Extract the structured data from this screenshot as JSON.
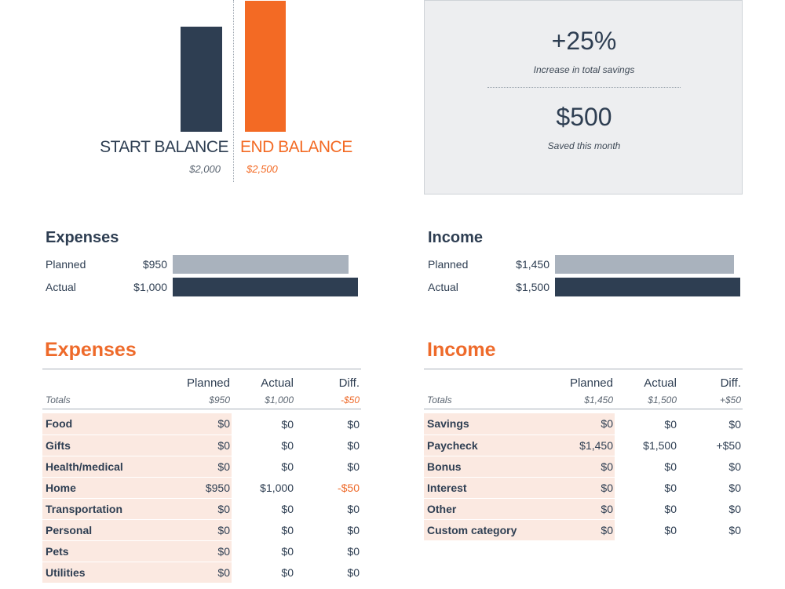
{
  "colors": {
    "navy": "#2e3e52",
    "orange": "#f36a24",
    "grey_bar": "#a9b2bd",
    "panel_bg": "#edeef0",
    "row_shade": "#fbe9e1"
  },
  "balance": {
    "start_label": "START BALANCE",
    "start_amount": "$2,000",
    "end_label": "END BALANCE",
    "end_amount": "$2,500"
  },
  "savings": {
    "increase_value": "+25%",
    "increase_caption": "Increase in total savings",
    "saved_value": "$500",
    "saved_caption": "Saved this month"
  },
  "expenses_summary": {
    "title": "Expenses",
    "planned_label": "Planned",
    "planned_amount": "$950",
    "planned_value": 950,
    "actual_label": "Actual",
    "actual_amount": "$1,000",
    "actual_value": 1000
  },
  "income_summary": {
    "title": "Income",
    "planned_label": "Planned",
    "planned_amount": "$1,450",
    "planned_value": 1450,
    "actual_label": "Actual",
    "actual_amount": "$1,500",
    "actual_value": 1500
  },
  "expenses_table": {
    "title": "Expenses",
    "headers": {
      "planned": "Planned",
      "actual": "Actual",
      "diff": "Diff."
    },
    "totals": {
      "label": "Totals",
      "planned": "$950",
      "actual": "$1,000",
      "diff": "-$50"
    },
    "rows": [
      {
        "category": "Food",
        "planned": "$0",
        "actual": "$0",
        "diff": "$0"
      },
      {
        "category": "Gifts",
        "planned": "$0",
        "actual": "$0",
        "diff": "$0"
      },
      {
        "category": "Health/medical",
        "planned": "$0",
        "actual": "$0",
        "diff": "$0"
      },
      {
        "category": "Home",
        "planned": "$950",
        "actual": "$1,000",
        "diff": "-$50"
      },
      {
        "category": "Transportation",
        "planned": "$0",
        "actual": "$0",
        "diff": "$0"
      },
      {
        "category": "Personal",
        "planned": "$0",
        "actual": "$0",
        "diff": "$0"
      },
      {
        "category": "Pets",
        "planned": "$0",
        "actual": "$0",
        "diff": "$0"
      },
      {
        "category": "Utilities",
        "planned": "$0",
        "actual": "$0",
        "diff": "$0"
      }
    ]
  },
  "income_table": {
    "title": "Income",
    "headers": {
      "planned": "Planned",
      "actual": "Actual",
      "diff": "Diff."
    },
    "totals": {
      "label": "Totals",
      "planned": "$1,450",
      "actual": "$1,500",
      "diff": "+$50"
    },
    "rows": [
      {
        "category": "Savings",
        "planned": "$0",
        "actual": "$0",
        "diff": "$0"
      },
      {
        "category": "Paycheck",
        "planned": "$1,450",
        "actual": "$1,500",
        "diff": "+$50"
      },
      {
        "category": "Bonus",
        "planned": "$0",
        "actual": "$0",
        "diff": "$0"
      },
      {
        "category": "Interest",
        "planned": "$0",
        "actual": "$0",
        "diff": "$0"
      },
      {
        "category": "Other",
        "planned": "$0",
        "actual": "$0",
        "diff": "$0"
      },
      {
        "category": "Custom category",
        "planned": "$0",
        "actual": "$0",
        "diff": "$0"
      }
    ]
  }
}
